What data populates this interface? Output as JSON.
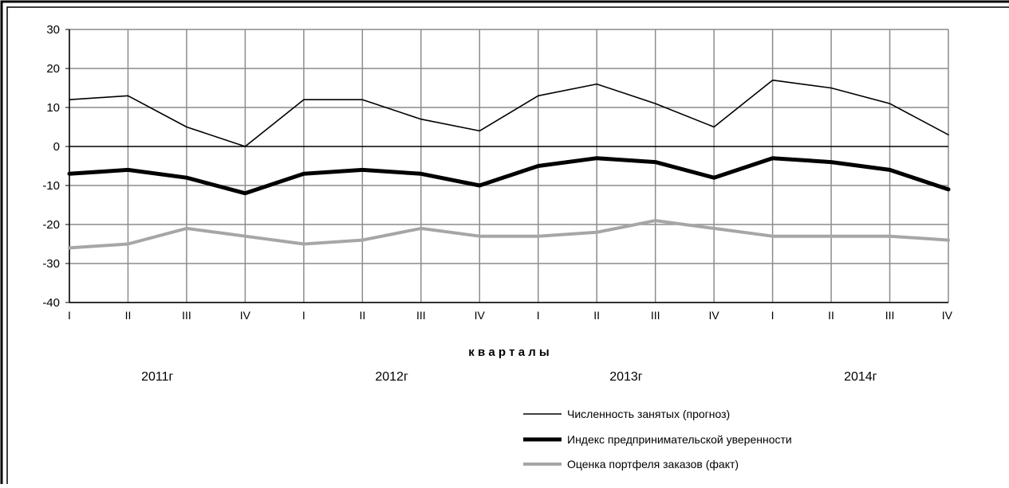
{
  "chart_data": {
    "type": "line",
    "categories": [
      "I",
      "II",
      "III",
      "IV",
      "I",
      "II",
      "III",
      "IV",
      "I",
      "II",
      "III",
      "IV",
      "I",
      "II",
      "III",
      "IV"
    ],
    "year_labels": [
      "2011г",
      "2012г",
      "2013г",
      "2014г"
    ],
    "xlabel": "к в а р т а л ы",
    "ylim": [
      -40,
      30
    ],
    "yticks": [
      30,
      20,
      10,
      0,
      -10,
      -20,
      -30,
      -40
    ],
    "ytick_labels": [
      "30",
      "20",
      "10",
      "0",
      "-10",
      "-20",
      "-30",
      "-40"
    ],
    "grid": true,
    "legend_position": "bottom-right",
    "series": [
      {
        "name": "Численность занятых (прогноз)",
        "color": "#000000",
        "values": [
          12,
          13,
          5,
          0,
          12,
          12,
          7,
          4,
          13,
          16,
          11,
          5,
          17,
          15,
          11,
          3
        ]
      },
      {
        "name": "Индекс предпринимательской уверенности",
        "color": "#000000",
        "values": [
          -7,
          -6,
          -8,
          -12,
          -7,
          -6,
          -7,
          -10,
          -5,
          -3,
          -4,
          -8,
          -3,
          -4,
          -6,
          -11
        ]
      },
      {
        "name": "Оценка портфеля заказов (факт)",
        "color": "#a6a6a6",
        "values": [
          -26,
          -25,
          -21,
          -23,
          -25,
          -24,
          -21,
          -23,
          -23,
          -22,
          -19,
          -21,
          -23,
          -23,
          -23,
          -24
        ]
      }
    ]
  }
}
